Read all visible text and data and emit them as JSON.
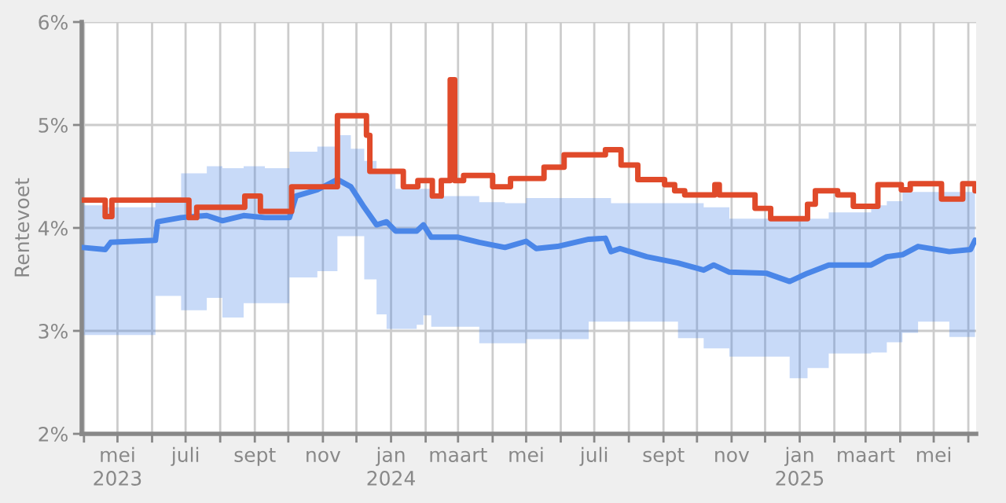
{
  "chart_data": {
    "type": "line",
    "ylabel": "Rentevoet",
    "xlim": [
      "2023-03-30",
      "2025-06-08"
    ],
    "ylim": [
      2,
      6
    ],
    "yticks": [
      {
        "value": 2,
        "label": "2%"
      },
      {
        "value": 3,
        "label": "3%"
      },
      {
        "value": 4,
        "label": "4%"
      },
      {
        "value": 5,
        "label": "5%"
      },
      {
        "value": 6,
        "label": "6%"
      }
    ],
    "xticks": [
      {
        "value": "2023-04-01",
        "label": null
      },
      {
        "value": "2023-05-01",
        "label": "mei\n2023"
      },
      {
        "value": "2023-06-01",
        "label": null
      },
      {
        "value": "2023-07-01",
        "label": "juli"
      },
      {
        "value": "2023-08-01",
        "label": null
      },
      {
        "value": "2023-09-01",
        "label": "sept"
      },
      {
        "value": "2023-10-01",
        "label": null
      },
      {
        "value": "2023-11-01",
        "label": "nov"
      },
      {
        "value": "2023-12-01",
        "label": null
      },
      {
        "value": "2024-01-01",
        "label": "jan\n2024"
      },
      {
        "value": "2024-02-01",
        "label": null
      },
      {
        "value": "2024-03-01",
        "label": "maart"
      },
      {
        "value": "2024-04-01",
        "label": null
      },
      {
        "value": "2024-05-01",
        "label": "mei"
      },
      {
        "value": "2024-06-01",
        "label": null
      },
      {
        "value": "2024-07-01",
        "label": "juli"
      },
      {
        "value": "2024-08-01",
        "label": null
      },
      {
        "value": "2024-09-01",
        "label": "sept"
      },
      {
        "value": "2024-10-01",
        "label": null
      },
      {
        "value": "2024-11-01",
        "label": "nov"
      },
      {
        "value": "2024-12-01",
        "label": null
      },
      {
        "value": "2025-01-01",
        "label": "jan\n2025"
      },
      {
        "value": "2025-02-01",
        "label": null
      },
      {
        "value": "2025-03-01",
        "label": "maart"
      },
      {
        "value": "2025-04-01",
        "label": null
      },
      {
        "value": "2025-05-01",
        "label": "mei"
      },
      {
        "value": "2025-06-01",
        "label": null
      }
    ],
    "grid": true,
    "series": [
      {
        "color": "#4a86e8",
        "x": [
          "2023-03-31",
          "2023-04-20",
          "2023-04-25",
          "2023-06-04",
          "2023-06-06",
          "2023-06-27",
          "2023-07-20",
          "2023-08-03",
          "2023-08-22",
          "2023-09-10",
          "2023-10-02",
          "2023-10-08",
          "2023-10-27",
          "2023-11-14",
          "2023-11-26",
          "2023-12-08",
          "2023-12-19",
          "2023-12-28",
          "2024-01-05",
          "2024-01-24",
          "2024-01-30",
          "2024-02-06",
          "2024-03-01",
          "2024-03-20",
          "2024-04-12",
          "2024-05-01",
          "2024-05-10",
          "2024-05-29",
          "2024-06-26",
          "2024-07-11",
          "2024-07-16",
          "2024-07-24",
          "2024-08-17",
          "2024-09-14",
          "2024-10-07",
          "2024-10-16",
          "2024-10-30",
          "2024-12-02",
          "2024-12-23",
          "2025-01-08",
          "2025-01-27",
          "2025-03-06",
          "2025-03-20",
          "2025-04-03",
          "2025-04-17",
          "2025-05-15",
          "2025-06-03",
          "2025-06-07"
        ],
        "values": [
          3.81,
          3.79,
          3.86,
          3.88,
          4.06,
          4.1,
          4.12,
          4.07,
          4.12,
          4.1,
          4.1,
          4.31,
          4.37,
          4.47,
          4.4,
          4.2,
          4.03,
          4.06,
          3.97,
          3.97,
          4.03,
          3.91,
          3.91,
          3.86,
          3.81,
          3.87,
          3.8,
          3.82,
          3.89,
          3.9,
          3.77,
          3.8,
          3.72,
          3.66,
          3.59,
          3.64,
          3.57,
          3.56,
          3.48,
          3.56,
          3.64,
          3.64,
          3.72,
          3.74,
          3.82,
          3.77,
          3.79,
          3.88
        ],
        "upper": [
          4.22,
          4.2,
          4.2,
          4.3,
          4.3,
          4.53,
          4.6,
          4.58,
          4.6,
          4.58,
          4.74,
          4.74,
          4.79,
          4.9,
          4.77,
          4.65,
          4.53,
          4.53,
          4.38,
          4.38,
          4.38,
          4.31,
          4.31,
          4.25,
          4.24,
          4.29,
          4.29,
          4.29,
          4.29,
          4.29,
          4.24,
          4.24,
          4.24,
          4.24,
          4.2,
          4.2,
          4.09,
          4.09,
          4.09,
          4.09,
          4.15,
          4.22,
          4.26,
          4.35,
          4.35,
          4.35,
          4.35,
          4.35
        ],
        "lower": [
          2.96,
          2.96,
          2.96,
          3.34,
          3.34,
          3.2,
          3.32,
          3.13,
          3.27,
          3.27,
          3.52,
          3.52,
          3.58,
          3.92,
          3.92,
          3.5,
          3.16,
          3.02,
          3.02,
          3.06,
          3.15,
          3.04,
          3.04,
          2.88,
          2.88,
          2.92,
          2.92,
          2.92,
          3.09,
          3.09,
          3.09,
          3.09,
          3.09,
          2.93,
          2.83,
          2.83,
          2.75,
          2.75,
          2.54,
          2.64,
          2.78,
          2.79,
          2.89,
          2.98,
          3.09,
          2.94,
          2.94,
          2.94
        ]
      },
      {
        "type": "step",
        "color": "#e04a2a",
        "x": [
          "2023-03-31",
          "2023-04-20",
          "2023-04-26",
          "2023-07-04",
          "2023-07-11",
          "2023-08-23",
          "2023-09-06",
          "2023-10-04",
          "2023-11-14",
          "2023-12-10",
          "2023-12-13",
          "2024-01-12",
          "2024-01-25",
          "2024-02-07",
          "2024-02-15",
          "2024-02-23",
          "2024-02-27",
          "2024-03-06",
          "2024-04-01",
          "2024-04-17",
          "2024-05-17",
          "2024-06-04",
          "2024-07-11",
          "2024-07-25",
          "2024-08-09",
          "2024-09-02",
          "2024-09-11",
          "2024-09-20",
          "2024-10-17",
          "2024-10-21",
          "2024-11-22",
          "2024-12-06",
          "2025-01-08",
          "2025-01-15",
          "2025-02-04",
          "2025-02-18",
          "2025-03-12",
          "2025-04-02",
          "2025-04-10",
          "2025-05-08",
          "2025-05-27",
          "2025-06-07"
        ],
        "values": [
          4.27,
          4.11,
          4.27,
          4.1,
          4.2,
          4.31,
          4.16,
          4.4,
          5.09,
          4.9,
          4.55,
          4.4,
          4.46,
          4.31,
          4.46,
          5.44,
          4.46,
          4.51,
          4.4,
          4.48,
          4.59,
          4.71,
          4.76,
          4.61,
          4.47,
          4.42,
          4.36,
          4.32,
          4.42,
          4.32,
          4.19,
          4.09,
          4.23,
          4.36,
          4.32,
          4.21,
          4.42,
          4.37,
          4.43,
          4.28,
          4.43,
          4.36
        ]
      }
    ]
  }
}
